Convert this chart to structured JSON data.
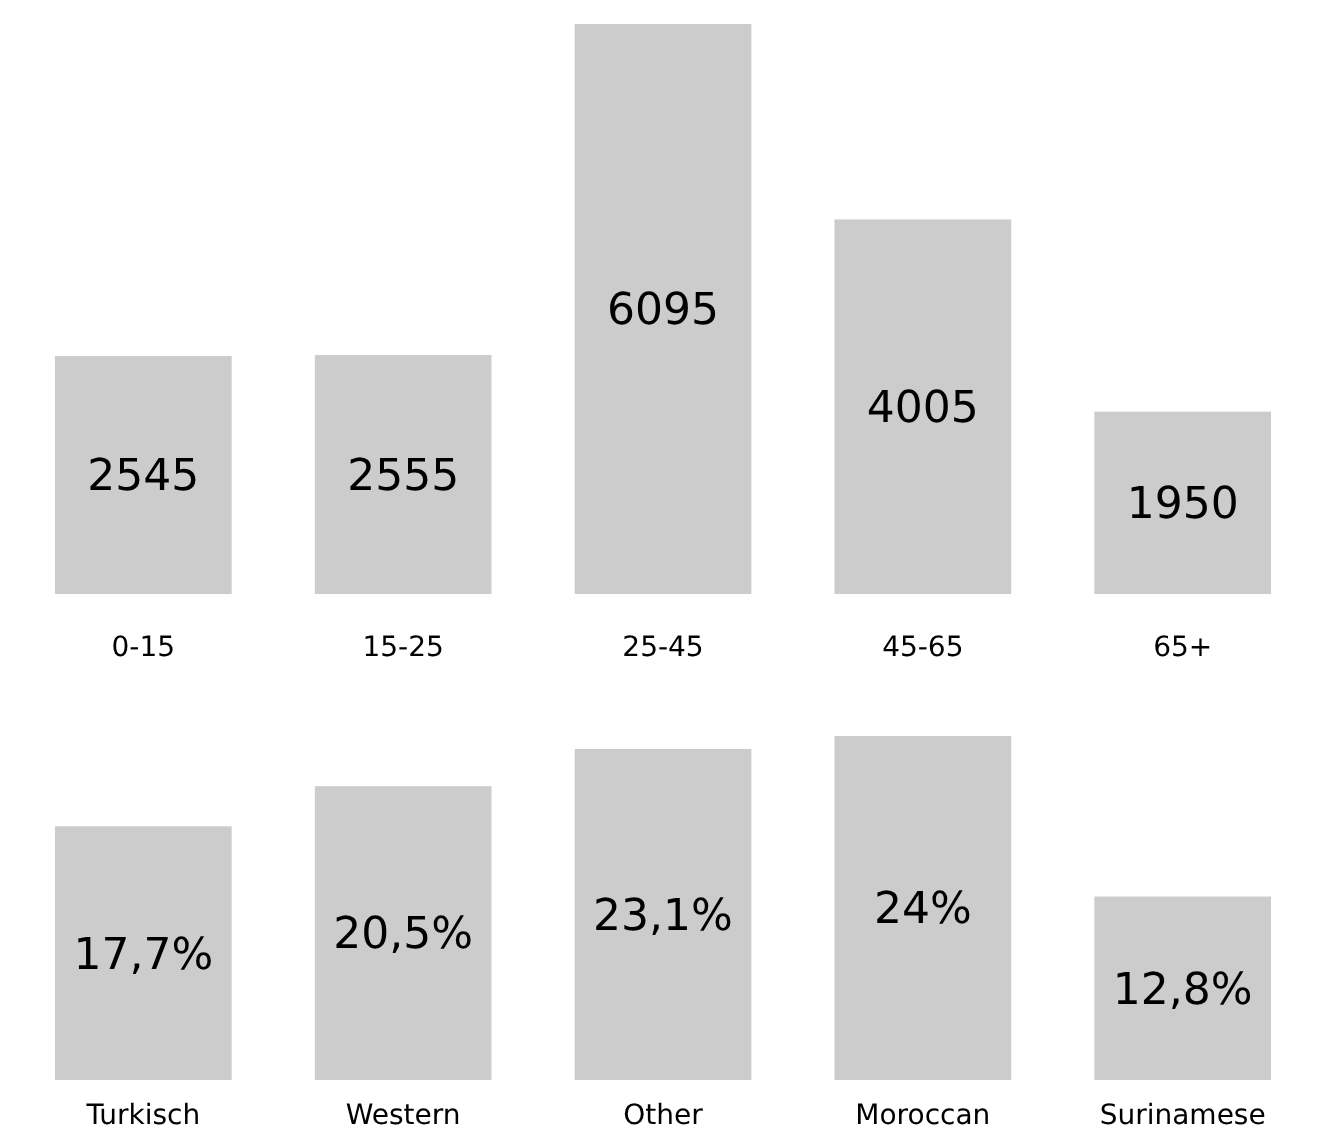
{
  "chart_data": [
    {
      "type": "bar",
      "categories": [
        "0-15",
        "15-25",
        "25-45",
        "45-65",
        "65+"
      ],
      "values": [
        2545,
        2555,
        6095,
        4005,
        1950
      ],
      "color": "#cccccc",
      "data_labels": true
    },
    {
      "type": "bar",
      "categories": [
        "Turkisch",
        "Western",
        "Other",
        "Moroccan",
        "Surinamese"
      ],
      "values": [
        17.7,
        20.5,
        23.1,
        24,
        12.8
      ],
      "value_labels": [
        "17,7%",
        "20,5%",
        "23,1%",
        "24%",
        "12,8%"
      ],
      "color": "#cccccc"
    }
  ]
}
